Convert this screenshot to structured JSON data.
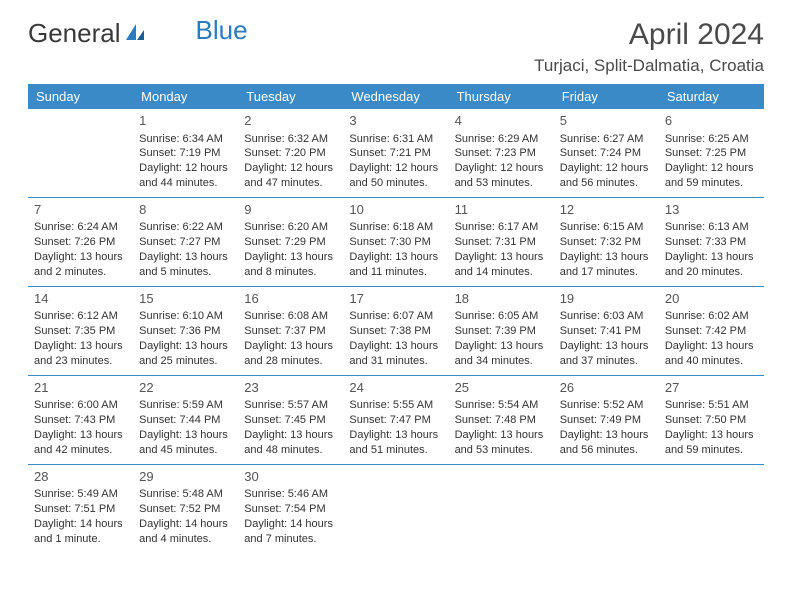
{
  "logo": {
    "text1": "General",
    "text2": "Blue"
  },
  "title": "April 2024",
  "location": "Turjaci, Split-Dalmatia, Croatia",
  "colors": {
    "header_bg": "#3a8ac8",
    "header_text": "#ffffff",
    "border": "#3a8ac8",
    "logo_gray": "#3a3a3a",
    "logo_blue": "#2b7bbf",
    "text": "#333333"
  },
  "weekdays": [
    "Sunday",
    "Monday",
    "Tuesday",
    "Wednesday",
    "Thursday",
    "Friday",
    "Saturday"
  ],
  "weeks": [
    [
      null,
      {
        "n": "1",
        "sr": "Sunrise: 6:34 AM",
        "ss": "Sunset: 7:19 PM",
        "dl1": "Daylight: 12 hours",
        "dl2": "and 44 minutes."
      },
      {
        "n": "2",
        "sr": "Sunrise: 6:32 AM",
        "ss": "Sunset: 7:20 PM",
        "dl1": "Daylight: 12 hours",
        "dl2": "and 47 minutes."
      },
      {
        "n": "3",
        "sr": "Sunrise: 6:31 AM",
        "ss": "Sunset: 7:21 PM",
        "dl1": "Daylight: 12 hours",
        "dl2": "and 50 minutes."
      },
      {
        "n": "4",
        "sr": "Sunrise: 6:29 AM",
        "ss": "Sunset: 7:23 PM",
        "dl1": "Daylight: 12 hours",
        "dl2": "and 53 minutes."
      },
      {
        "n": "5",
        "sr": "Sunrise: 6:27 AM",
        "ss": "Sunset: 7:24 PM",
        "dl1": "Daylight: 12 hours",
        "dl2": "and 56 minutes."
      },
      {
        "n": "6",
        "sr": "Sunrise: 6:25 AM",
        "ss": "Sunset: 7:25 PM",
        "dl1": "Daylight: 12 hours",
        "dl2": "and 59 minutes."
      }
    ],
    [
      {
        "n": "7",
        "sr": "Sunrise: 6:24 AM",
        "ss": "Sunset: 7:26 PM",
        "dl1": "Daylight: 13 hours",
        "dl2": "and 2 minutes."
      },
      {
        "n": "8",
        "sr": "Sunrise: 6:22 AM",
        "ss": "Sunset: 7:27 PM",
        "dl1": "Daylight: 13 hours",
        "dl2": "and 5 minutes."
      },
      {
        "n": "9",
        "sr": "Sunrise: 6:20 AM",
        "ss": "Sunset: 7:29 PM",
        "dl1": "Daylight: 13 hours",
        "dl2": "and 8 minutes."
      },
      {
        "n": "10",
        "sr": "Sunrise: 6:18 AM",
        "ss": "Sunset: 7:30 PM",
        "dl1": "Daylight: 13 hours",
        "dl2": "and 11 minutes."
      },
      {
        "n": "11",
        "sr": "Sunrise: 6:17 AM",
        "ss": "Sunset: 7:31 PM",
        "dl1": "Daylight: 13 hours",
        "dl2": "and 14 minutes."
      },
      {
        "n": "12",
        "sr": "Sunrise: 6:15 AM",
        "ss": "Sunset: 7:32 PM",
        "dl1": "Daylight: 13 hours",
        "dl2": "and 17 minutes."
      },
      {
        "n": "13",
        "sr": "Sunrise: 6:13 AM",
        "ss": "Sunset: 7:33 PM",
        "dl1": "Daylight: 13 hours",
        "dl2": "and 20 minutes."
      }
    ],
    [
      {
        "n": "14",
        "sr": "Sunrise: 6:12 AM",
        "ss": "Sunset: 7:35 PM",
        "dl1": "Daylight: 13 hours",
        "dl2": "and 23 minutes."
      },
      {
        "n": "15",
        "sr": "Sunrise: 6:10 AM",
        "ss": "Sunset: 7:36 PM",
        "dl1": "Daylight: 13 hours",
        "dl2": "and 25 minutes."
      },
      {
        "n": "16",
        "sr": "Sunrise: 6:08 AM",
        "ss": "Sunset: 7:37 PM",
        "dl1": "Daylight: 13 hours",
        "dl2": "and 28 minutes."
      },
      {
        "n": "17",
        "sr": "Sunrise: 6:07 AM",
        "ss": "Sunset: 7:38 PM",
        "dl1": "Daylight: 13 hours",
        "dl2": "and 31 minutes."
      },
      {
        "n": "18",
        "sr": "Sunrise: 6:05 AM",
        "ss": "Sunset: 7:39 PM",
        "dl1": "Daylight: 13 hours",
        "dl2": "and 34 minutes."
      },
      {
        "n": "19",
        "sr": "Sunrise: 6:03 AM",
        "ss": "Sunset: 7:41 PM",
        "dl1": "Daylight: 13 hours",
        "dl2": "and 37 minutes."
      },
      {
        "n": "20",
        "sr": "Sunrise: 6:02 AM",
        "ss": "Sunset: 7:42 PM",
        "dl1": "Daylight: 13 hours",
        "dl2": "and 40 minutes."
      }
    ],
    [
      {
        "n": "21",
        "sr": "Sunrise: 6:00 AM",
        "ss": "Sunset: 7:43 PM",
        "dl1": "Daylight: 13 hours",
        "dl2": "and 42 minutes."
      },
      {
        "n": "22",
        "sr": "Sunrise: 5:59 AM",
        "ss": "Sunset: 7:44 PM",
        "dl1": "Daylight: 13 hours",
        "dl2": "and 45 minutes."
      },
      {
        "n": "23",
        "sr": "Sunrise: 5:57 AM",
        "ss": "Sunset: 7:45 PM",
        "dl1": "Daylight: 13 hours",
        "dl2": "and 48 minutes."
      },
      {
        "n": "24",
        "sr": "Sunrise: 5:55 AM",
        "ss": "Sunset: 7:47 PM",
        "dl1": "Daylight: 13 hours",
        "dl2": "and 51 minutes."
      },
      {
        "n": "25",
        "sr": "Sunrise: 5:54 AM",
        "ss": "Sunset: 7:48 PM",
        "dl1": "Daylight: 13 hours",
        "dl2": "and 53 minutes."
      },
      {
        "n": "26",
        "sr": "Sunrise: 5:52 AM",
        "ss": "Sunset: 7:49 PM",
        "dl1": "Daylight: 13 hours",
        "dl2": "and 56 minutes."
      },
      {
        "n": "27",
        "sr": "Sunrise: 5:51 AM",
        "ss": "Sunset: 7:50 PM",
        "dl1": "Daylight: 13 hours",
        "dl2": "and 59 minutes."
      }
    ],
    [
      {
        "n": "28",
        "sr": "Sunrise: 5:49 AM",
        "ss": "Sunset: 7:51 PM",
        "dl1": "Daylight: 14 hours",
        "dl2": "and 1 minute."
      },
      {
        "n": "29",
        "sr": "Sunrise: 5:48 AM",
        "ss": "Sunset: 7:52 PM",
        "dl1": "Daylight: 14 hours",
        "dl2": "and 4 minutes."
      },
      {
        "n": "30",
        "sr": "Sunrise: 5:46 AM",
        "ss": "Sunset: 7:54 PM",
        "dl1": "Daylight: 14 hours",
        "dl2": "and 7 minutes."
      },
      null,
      null,
      null,
      null
    ]
  ]
}
